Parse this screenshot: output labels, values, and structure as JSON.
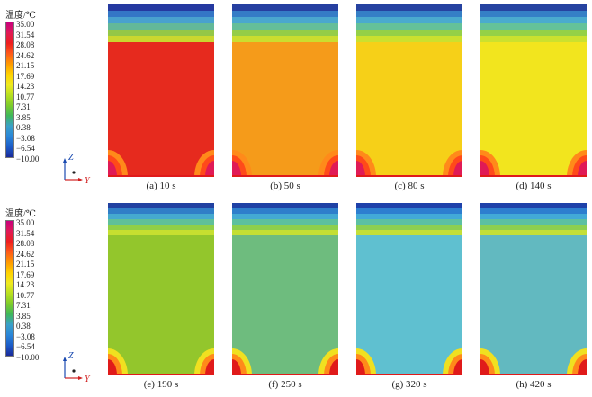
{
  "legend": {
    "title": "温度/℃",
    "ticks": [
      "35.00",
      "31.54",
      "28.08",
      "24.62",
      "21.15",
      "17.69",
      "14.23",
      "10.77",
      "7.31",
      "3.85",
      "0.38",
      "−3.08",
      "−6.54",
      "−10.00"
    ],
    "colors": [
      "#c8007e",
      "#e01a56",
      "#ee1e1e",
      "#ff5a1a",
      "#ff9a00",
      "#ffd200",
      "#f0ea20",
      "#b9e020",
      "#7fcc2a",
      "#3fb85a",
      "#3aa0c8",
      "#2a86d8",
      "#1c5cc8",
      "#1a2a9a"
    ]
  },
  "axes": {
    "z_label": "Z",
    "y_label": "Y"
  },
  "panels_top": [
    {
      "caption": "(a) 10 s",
      "body_color": "#e62a1e"
    },
    {
      "caption": "(b) 50 s",
      "body_color": "#f59b1a"
    },
    {
      "caption": "(c) 80 s",
      "body_color": "#f6d018"
    },
    {
      "caption": "(d) 140 s",
      "body_color": "#f2e51e"
    }
  ],
  "panels_bottom": [
    {
      "caption": "(e) 190 s",
      "body_color": "#93c62c"
    },
    {
      "caption": "(f) 250 s",
      "body_color": "#6ebc7e"
    },
    {
      "caption": "(g) 320 s",
      "body_color": "#5fc0d0"
    },
    {
      "caption": "(h) 420 s",
      "body_color": "#62b9c0"
    }
  ]
}
